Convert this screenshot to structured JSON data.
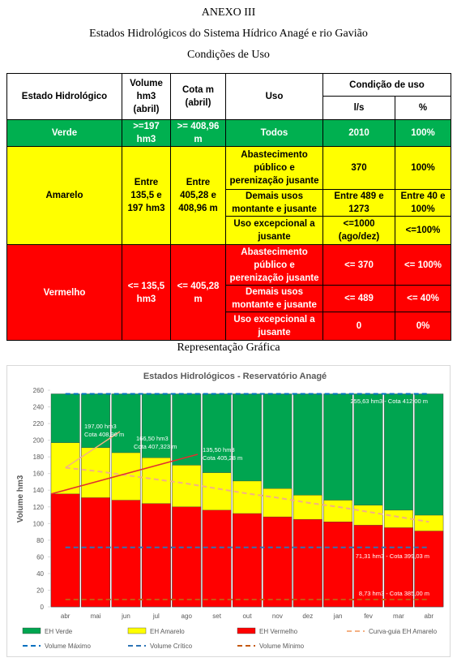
{
  "header": {
    "line1": "ANEXO III",
    "line2": "Estados Hidrológicos do Sistema Hídrico Anagé e rio Gavião",
    "line3": "Condições de Uso"
  },
  "table": {
    "header": [
      "Estado Hidrológico",
      "Volume hm3 (abril)",
      "Cota m (abril)",
      "Uso",
      "Condição de uso",
      "l/s",
      "%"
    ],
    "rows": [
      {
        "estado": "Verde",
        "volume": ">=197 hm3",
        "cota": ">= 408,96 m",
        "usos": [
          {
            "uso": "Todos",
            "ls": "2010",
            "pct": "100%"
          }
        ]
      },
      {
        "estado": "Amarelo",
        "volume": "Entre 135,5 e 197 hm3",
        "cota": "Entre 405,28 e 408,96 m",
        "usos": [
          {
            "uso": "Abastecimento público e perenização jusante",
            "ls": "370",
            "pct": "100%"
          },
          {
            "uso": "Demais usos montante e jusante",
            "ls": "Entre 489 e 1273",
            "pct": "Entre 40 e 100%"
          },
          {
            "uso": "Uso excepcional a jusante",
            "ls": "<=1000 (ago/dez)",
            "pct": "<=100%"
          }
        ]
      },
      {
        "estado": "Vermelho",
        "volume": "<= 135,5 hm3",
        "cota": "<= 405,28 m",
        "usos": [
          {
            "uso": "Abastecimento público e perenização jusante",
            "ls": "<= 370",
            "pct": "<= 100%"
          },
          {
            "uso": "Demais usos montante e jusante",
            "ls": "<= 489",
            "pct": "<= 40%"
          },
          {
            "uso": "Uso excepcional a jusante",
            "ls": "0",
            "pct": "0%"
          }
        ]
      }
    ]
  },
  "caption": "Representação Gráfica",
  "chart_data": {
    "type": "bar",
    "title": "Estados Hidrológicos - Reservatório Anagé",
    "y_label": "Volume hm3",
    "categories": [
      "abr",
      "mai",
      "jun",
      "jul",
      "ago",
      "set",
      "out",
      "nov",
      "dez",
      "jan",
      "fev",
      "mar",
      "abr"
    ],
    "series": [
      {
        "name": "EH Verde",
        "color": "#00a550",
        "values": [
          255.63,
          255.63,
          255.63,
          255.63,
          255.63,
          255.63,
          255.63,
          255.63,
          255.63,
          255.63,
          255.63,
          255.63,
          255.63
        ]
      },
      {
        "name": "EH Amarelo",
        "color": "#ffff00",
        "values": [
          197,
          191,
          185,
          179,
          170,
          161,
          151,
          142,
          134,
          128,
          122,
          116,
          110
        ]
      },
      {
        "name": "EH Vermelho",
        "color": "#ff0000",
        "values": [
          135.5,
          131,
          128,
          124,
          120,
          116,
          112,
          108,
          105,
          102,
          98,
          95,
          91
        ]
      },
      {
        "name": "Curva-guia EH Amarelo",
        "type": "line",
        "dashed": true,
        "color": "#f4b183",
        "values": [
          167,
          163,
          158,
          153,
          148,
          142,
          136,
          131,
          125,
          120,
          114,
          108,
          102
        ]
      },
      {
        "name": "Volume Máximo",
        "type": "line",
        "dashed": true,
        "color": "#0070c0",
        "values": [
          255.63,
          255.63,
          255.63,
          255.63,
          255.63,
          255.63,
          255.63,
          255.63,
          255.63,
          255.63,
          255.63,
          255.63,
          255.63
        ]
      },
      {
        "name": "Volume Crítico",
        "type": "line",
        "dashed": true,
        "color": "#2e75b6",
        "values": [
          71.31,
          71.31,
          71.31,
          71.31,
          71.31,
          71.31,
          71.31,
          71.31,
          71.31,
          71.31,
          71.31,
          71.31,
          71.31
        ]
      },
      {
        "name": "Volume Mínimo",
        "type": "line",
        "dashed": true,
        "color": "#c55a11",
        "values": [
          8.73,
          8.73,
          8.73,
          8.73,
          8.73,
          8.73,
          8.73,
          8.73,
          8.73,
          8.73,
          8.73,
          8.73,
          8.73
        ]
      }
    ],
    "annotations": [
      "197,00 hm3",
      "Cota 408,96 m",
      "166,50 hm3",
      "Cota 407,323 m",
      "135,50 hm3",
      "Cota 405,28 m",
      "255,63 hm3 - Cota 412,00 m",
      "71,31 hm3 - Cota 399,03 m",
      "8,73 hm3 - Cota 385,00 m"
    ],
    "ylim": [
      0,
      260
    ],
    "yticks": [
      0,
      20,
      40,
      60,
      80,
      100,
      120,
      140,
      160,
      180,
      200,
      220,
      240,
      260
    ],
    "grid": false
  }
}
